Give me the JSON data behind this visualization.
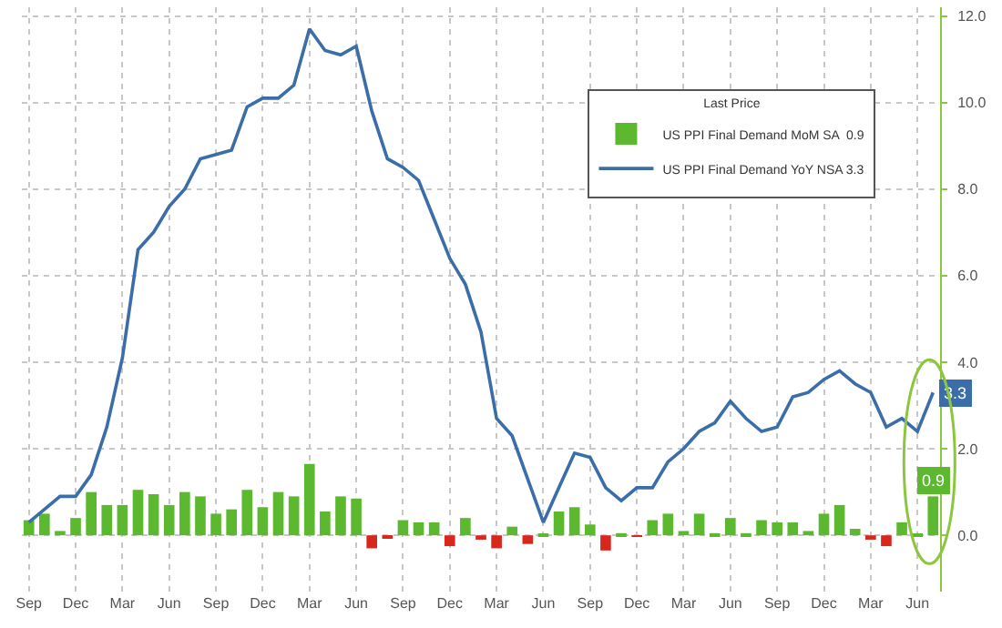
{
  "chart_data": {
    "type": "bar",
    "legend_title": "Last Price",
    "legend": "top right",
    "grid": true,
    "categories": [
      "Sep",
      null,
      null,
      "Dec",
      null,
      null,
      "Mar",
      null,
      null,
      "Jun",
      null,
      null,
      "Sep",
      null,
      null,
      "Dec",
      null,
      null,
      "Mar",
      null,
      null,
      "Jun",
      null,
      null,
      "Sep",
      null,
      null,
      "Dec",
      null,
      null,
      "Mar",
      null,
      null,
      "Jun",
      null,
      null,
      "Sep",
      null,
      null,
      "Dec",
      null,
      null,
      "Mar",
      null,
      null,
      "Jun",
      null,
      null,
      "Sep",
      null,
      null,
      "Dec",
      null,
      null,
      "Mar",
      null,
      null,
      "Jun",
      null
    ],
    "ylim": [
      -1.3,
      12.2
    ],
    "yticks": [
      {
        "value": 0,
        "label": "0.0"
      },
      {
        "value": 2,
        "label": "2.0"
      },
      {
        "value": 4,
        "label": "4.0"
      },
      {
        "value": 6,
        "label": "6.0"
      },
      {
        "value": 8,
        "label": "8.0"
      },
      {
        "value": 10,
        "label": "10.0"
      },
      {
        "value": 12,
        "label": "12.0"
      }
    ],
    "series": [
      {
        "name": "US PPI Final Demand MoM SA  0.9",
        "color": "#5cb82e",
        "colors": [
          "#5cb82e",
          "#5cb82e",
          "#5cb82e",
          "#5cb82e",
          "#5cb82e",
          "#5cb82e",
          "#5cb82e",
          "#5cb82e",
          "#5cb82e",
          "#5cb82e",
          "#5cb82e",
          "#5cb82e",
          "#5cb82e",
          "#5cb82e",
          "#5cb82e",
          "#5cb82e",
          "#5cb82e",
          "#5cb82e",
          "#5cb82e",
          "#5cb82e",
          "#5cb82e",
          "#5cb82e",
          "#d8281e",
          "#d8281e",
          "#5cb82e",
          "#5cb82e",
          "#5cb82e",
          "#d8281e",
          "#5cb82e",
          "#d8281e",
          "#d8281e",
          "#5cb82e",
          "#d8281e",
          "#5cb82e",
          "#5cb82e",
          "#5cb82e",
          "#5cb82e",
          "#d8281e",
          "#5cb82e",
          "#d8281e",
          "#5cb82e",
          "#5cb82e",
          "#5cb82e",
          "#5cb82e",
          "#5cb82e",
          "#5cb82e",
          "#5cb82e",
          "#5cb82e",
          "#5cb82e",
          "#5cb82e",
          "#5cb82e",
          "#5cb82e",
          "#5cb82e",
          "#5cb82e",
          "#d8281e",
          "#d8281e",
          "#5cb82e",
          "#5cb82e",
          "#5cb82e"
        ],
        "values": [
          0.35,
          0.5,
          0.1,
          0.4,
          1.0,
          0.7,
          0.7,
          1.05,
          0.95,
          0.7,
          1.0,
          0.9,
          0.5,
          0.6,
          1.05,
          0.65,
          1.0,
          0.9,
          1.65,
          0.55,
          0.9,
          0.85,
          -0.3,
          -0.05,
          0.35,
          0.3,
          0.3,
          -0.25,
          0.4,
          -0.1,
          -0.3,
          0.2,
          -0.2,
          0.02,
          0.55,
          0.65,
          0.25,
          -0.35,
          0.05,
          -0.03,
          0.35,
          0.5,
          0.1,
          0.5,
          0.05,
          0.4,
          0.05,
          0.35,
          0.3,
          0.3,
          0.1,
          0.5,
          0.7,
          0.15,
          -0.1,
          -0.25,
          0.3,
          0.02,
          0.9
        ],
        "value_labels": [
          null,
          null,
          null,
          null,
          null,
          null,
          null,
          null,
          null,
          null,
          null,
          null,
          null,
          null,
          null,
          null,
          null,
          null,
          null,
          null,
          null,
          null,
          null,
          null,
          null,
          null,
          null,
          null,
          null,
          null,
          null,
          null,
          null,
          null,
          null,
          null,
          null,
          null,
          null,
          null,
          null,
          null,
          null,
          null,
          null,
          null,
          null,
          null,
          null,
          null,
          null,
          null,
          null,
          null,
          null,
          null,
          null,
          null,
          "0.9"
        ]
      },
      {
        "name": "US PPI Final Demand YoY NSA 3.3",
        "type": "line",
        "color": "#3b6ea8",
        "values": [
          0.3,
          0.6,
          0.9,
          0.9,
          1.4,
          2.5,
          4.1,
          6.6,
          7.0,
          7.6,
          8.0,
          8.7,
          8.8,
          8.9,
          9.9,
          10.1,
          10.1,
          10.4,
          11.7,
          11.2,
          11.1,
          11.3,
          9.8,
          8.7,
          8.5,
          8.2,
          7.3,
          6.4,
          5.8,
          4.7,
          2.7,
          2.3,
          1.3,
          0.3,
          1.1,
          1.9,
          1.8,
          1.1,
          0.8,
          1.1,
          1.1,
          1.7,
          2.0,
          2.4,
          2.6,
          3.1,
          2.7,
          2.4,
          2.5,
          3.2,
          3.3,
          3.6,
          3.8,
          3.5,
          3.3,
          2.5,
          2.7,
          2.4,
          3.3
        ],
        "value_labels": [
          null,
          null,
          null,
          null,
          null,
          null,
          null,
          null,
          null,
          null,
          null,
          null,
          null,
          null,
          null,
          null,
          null,
          null,
          null,
          null,
          null,
          null,
          null,
          null,
          null,
          null,
          null,
          null,
          null,
          null,
          null,
          null,
          null,
          null,
          null,
          null,
          null,
          null,
          null,
          null,
          null,
          null,
          null,
          null,
          null,
          null,
          null,
          null,
          null,
          null,
          null,
          null,
          null,
          null,
          null,
          null,
          null,
          null,
          "3.3"
        ]
      }
    ]
  }
}
